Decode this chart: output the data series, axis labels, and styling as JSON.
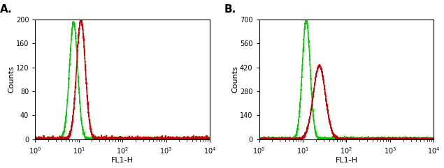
{
  "panel_A": {
    "label": "A.",
    "ylabel": "Counts",
    "xlabel": "FL1-H",
    "ylim": [
      0,
      200
    ],
    "yticks": [
      0,
      40,
      80,
      120,
      160,
      200
    ],
    "xlim_log": [
      1,
      10000
    ],
    "green_peak_log": 0.88,
    "green_sigma": 0.095,
    "green_height": 195,
    "red_peak_log": 1.05,
    "red_sigma": 0.1,
    "red_height": 200
  },
  "panel_B": {
    "label": "B.",
    "ylabel": "Counts",
    "xlabel": "FL1-H",
    "ylim": [
      0,
      700
    ],
    "yticks": [
      0,
      140,
      280,
      420,
      560,
      700
    ],
    "xlim_log": [
      1,
      10000
    ],
    "green_peak_log": 1.08,
    "green_sigma": 0.09,
    "green_height": 700,
    "red_peak_log": 1.38,
    "red_sigma": 0.14,
    "red_height": 430
  },
  "green_color": "#00cc00",
  "red_color": "#cc0000",
  "bg_color": "#ffffff",
  "linewidth": 1.1,
  "xtick_positions": [
    1,
    10,
    100,
    1000,
    10000
  ],
  "xtick_labels": [
    "10$^{0}$",
    "10$^{1}$",
    "10$^{2}$",
    "10$^{3}$",
    "10$^{4}$"
  ]
}
